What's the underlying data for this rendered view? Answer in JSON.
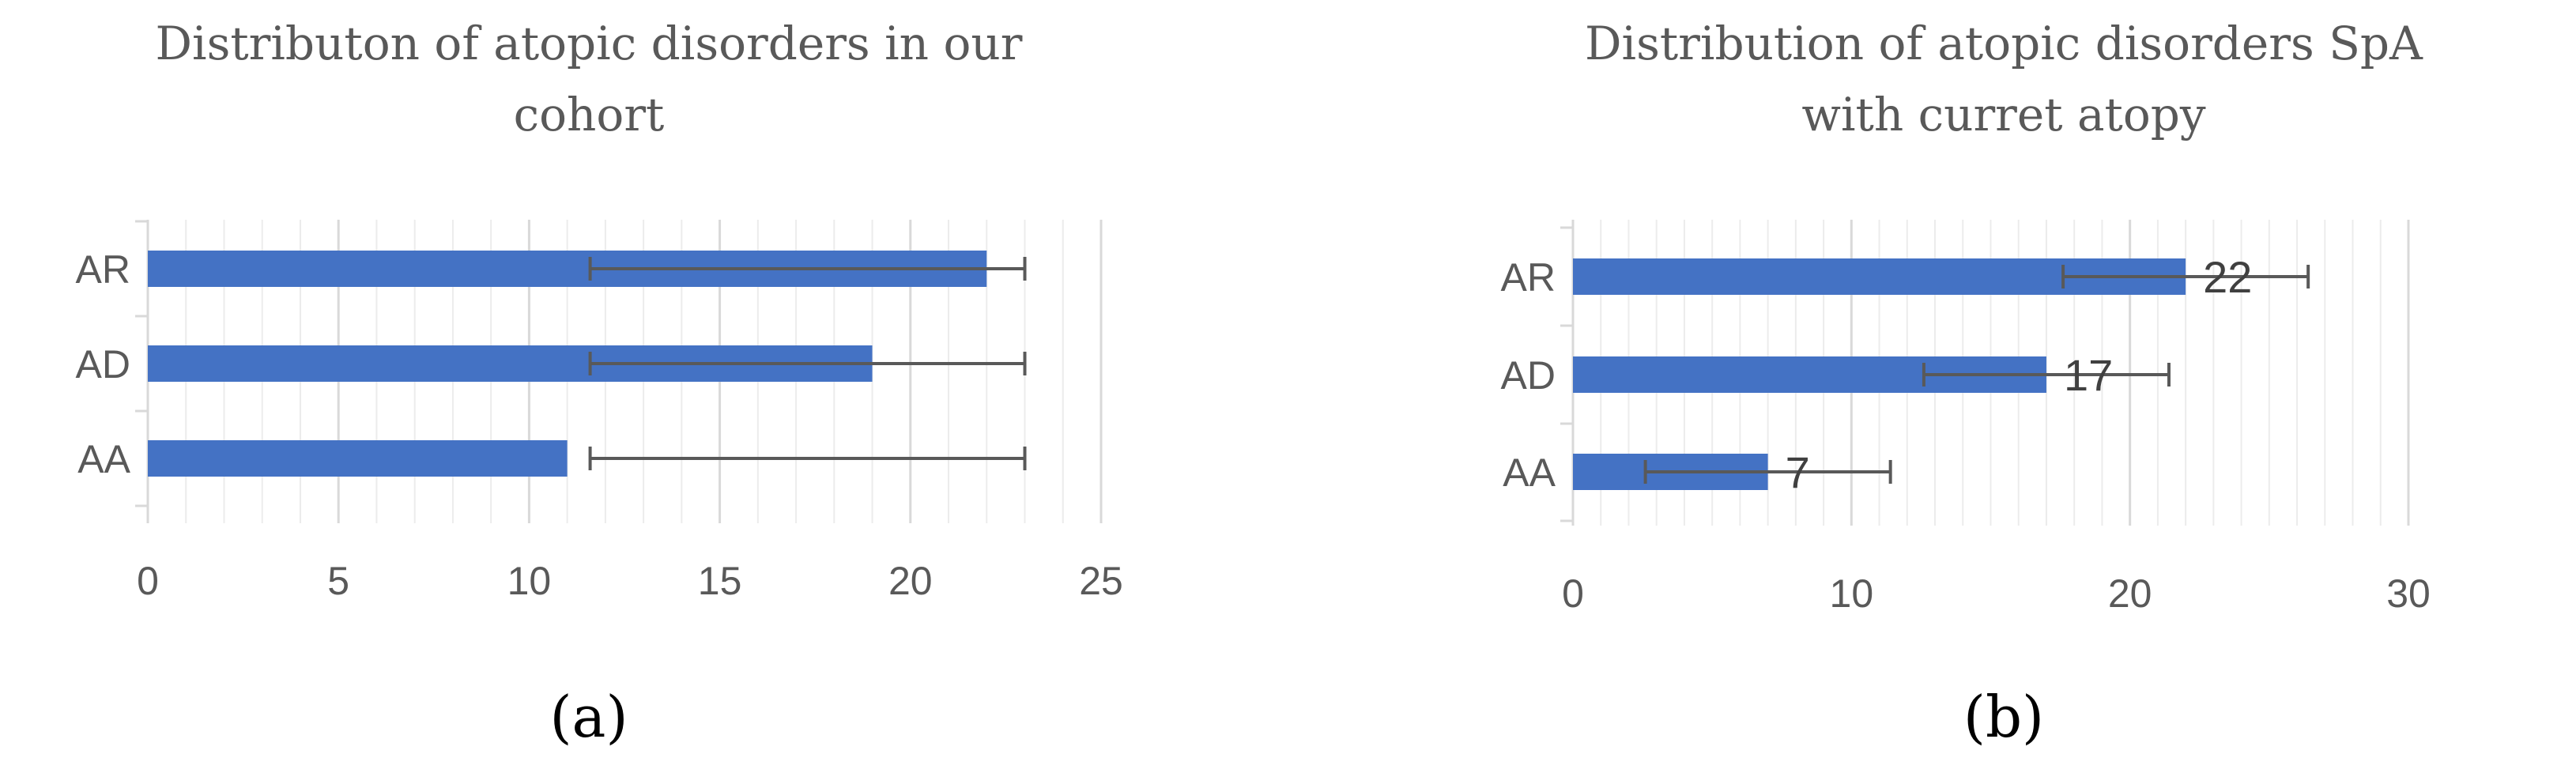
{
  "colors": {
    "bar": "#4472C4",
    "error_bar": "#595959",
    "grid_major": "#d9d9d9",
    "grid_minor": "#ececec"
  },
  "chart_data": [
    {
      "type": "bar",
      "orientation": "horizontal",
      "title_lines": [
        "Distributon of atopic disorders in our",
        "cohort"
      ],
      "panel_label": "(a)",
      "categories": [
        "AR",
        "AD",
        "AA"
      ],
      "values": [
        22,
        19,
        11
      ],
      "error_bars": [
        [
          11.6,
          23
        ],
        [
          11.6,
          23
        ],
        [
          11.6,
          23
        ]
      ],
      "xlim": [
        0,
        25
      ],
      "xticks": [
        0,
        5,
        10,
        15,
        20,
        25
      ],
      "minor_gridlines": true,
      "data_labels": false
    },
    {
      "type": "bar",
      "orientation": "horizontal",
      "title_lines": [
        "Distribution of atopic disorders SpA",
        "with curret atopy"
      ],
      "panel_label": "(b)",
      "categories": [
        "AR",
        "AD",
        "AA"
      ],
      "values": [
        22,
        17,
        7
      ],
      "error_bars": [
        [
          17.6,
          26.4
        ],
        [
          12.6,
          21.4
        ],
        [
          2.6,
          11.4
        ]
      ],
      "xlim": [
        0,
        30
      ],
      "xticks": [
        0,
        10,
        20,
        30
      ],
      "minor_gridlines": true,
      "data_labels": true
    }
  ]
}
